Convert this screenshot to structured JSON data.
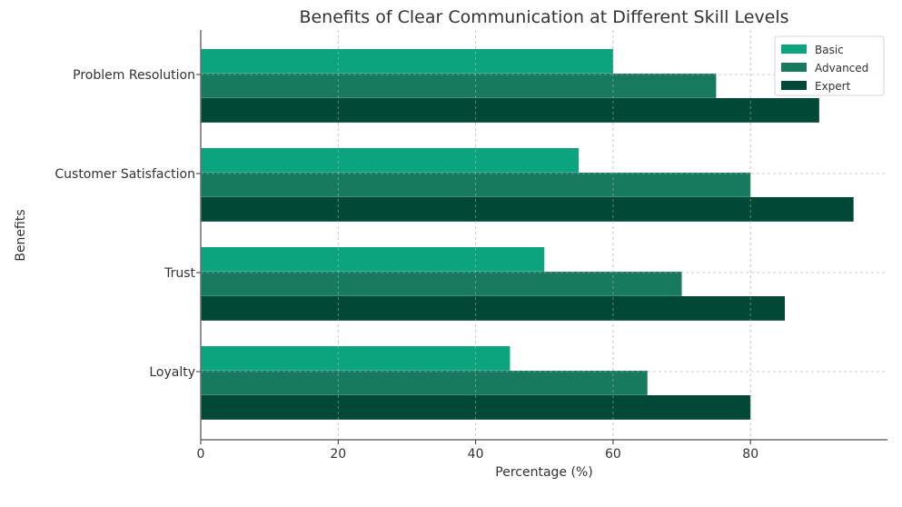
{
  "chart_data": {
    "type": "bar",
    "orientation": "horizontal",
    "title": "Benefits of Clear Communication at Different Skill Levels",
    "xlabel": "Percentage (%)",
    "ylabel": "Benefits",
    "categories": [
      "Loyalty",
      "Trust",
      "Customer Satisfaction",
      "Problem Resolution"
    ],
    "series": [
      {
        "name": "Basic",
        "color": "#0ca37f",
        "values": [
          45,
          50,
          55,
          60
        ]
      },
      {
        "name": "Advanced",
        "color": "#177a5e",
        "values": [
          65,
          70,
          80,
          75
        ]
      },
      {
        "name": "Expert",
        "color": "#024836",
        "values": [
          80,
          85,
          95,
          90
        ]
      }
    ],
    "xticks": [
      "0",
      "20",
      "40",
      "60",
      "80"
    ],
    "xtick_values": [
      0,
      20,
      40,
      60,
      80
    ],
    "xlim": [
      0,
      99.7
    ],
    "grid": true,
    "legend_position": "top-right"
  }
}
